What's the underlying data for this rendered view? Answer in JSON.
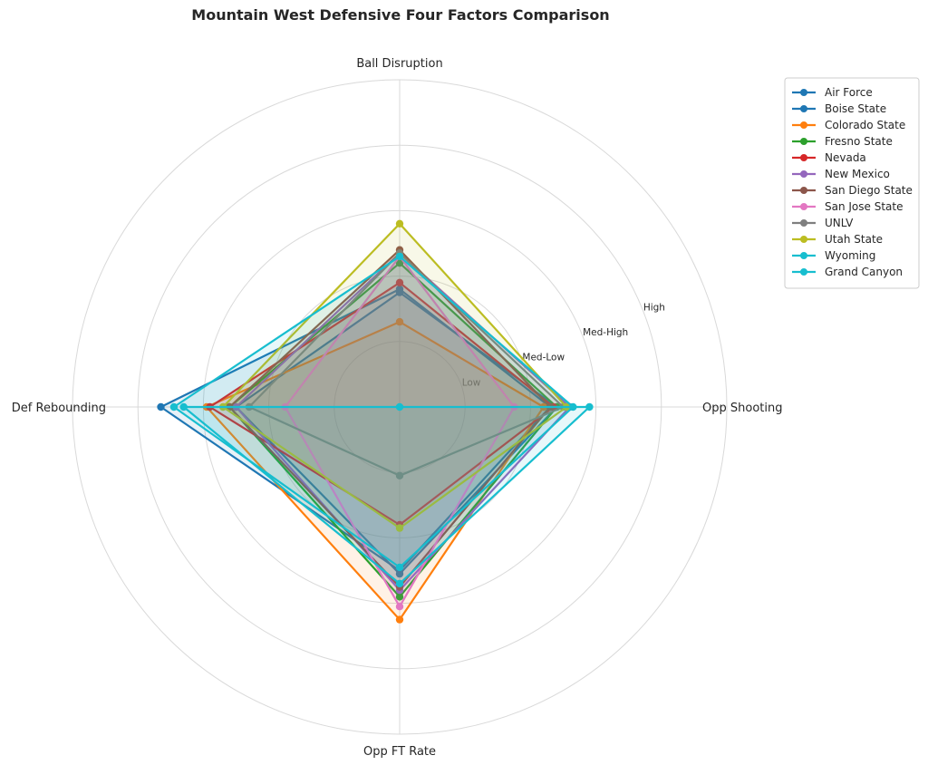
{
  "chart_data": {
    "type": "radar",
    "title": "Mountain West Defensive Four Factors Comparison",
    "axes": [
      "Ball Disruption",
      "Opp Shooting",
      "Opp FT Rate",
      "Def Rebounding"
    ],
    "rlim": [
      0,
      5
    ],
    "ring_labels": [
      {
        "value": 1,
        "label": "Low"
      },
      {
        "value": 2,
        "label": "Med-Low"
      },
      {
        "value": 3,
        "label": "Med-High"
      },
      {
        "value": 4,
        "label": "High"
      }
    ],
    "grid": true,
    "legend": "upper-right-outside",
    "series": [
      {
        "name": "Air Force",
        "color": "#1f77b4",
        "values": [
          1.8,
          2.3,
          2.5,
          3.65
        ]
      },
      {
        "name": "Boise State",
        "color": "#1f77b4",
        "values": [
          1.75,
          2.4,
          2.55,
          2.5
        ]
      },
      {
        "name": "Colorado State",
        "color": "#ff7f0e",
        "values": [
          1.3,
          2.2,
          3.25,
          2.95
        ]
      },
      {
        "name": "Fresno State",
        "color": "#2ca02c",
        "values": [
          2.2,
          2.4,
          2.9,
          2.6
        ]
      },
      {
        "name": "Nevada",
        "color": "#d62728",
        "values": [
          1.9,
          2.35,
          1.8,
          2.9
        ]
      },
      {
        "name": "New Mexico",
        "color": "#9467bd",
        "values": [
          2.35,
          2.6,
          2.8,
          2.5
        ]
      },
      {
        "name": "San Diego State",
        "color": "#8c564b",
        "values": [
          2.4,
          2.3,
          2.75,
          2.6
        ]
      },
      {
        "name": "San Jose State",
        "color": "#e377c2",
        "values": [
          2.3,
          1.75,
          3.05,
          1.75
        ]
      },
      {
        "name": "UNLV",
        "color": "#7f7f7f",
        "values": [
          2.35,
          2.5,
          1.05,
          2.3
        ]
      },
      {
        "name": "Utah State",
        "color": "#bcbd22",
        "values": [
          2.8,
          2.55,
          1.85,
          2.7
        ]
      },
      {
        "name": "Wyoming",
        "color": "#17becf",
        "values": [
          2.3,
          2.65,
          2.45,
          3.45
        ]
      },
      {
        "name": "Grand Canyon",
        "color": "#17becf",
        "values": [
          0,
          2.9,
          2.7,
          3.3
        ]
      }
    ]
  }
}
